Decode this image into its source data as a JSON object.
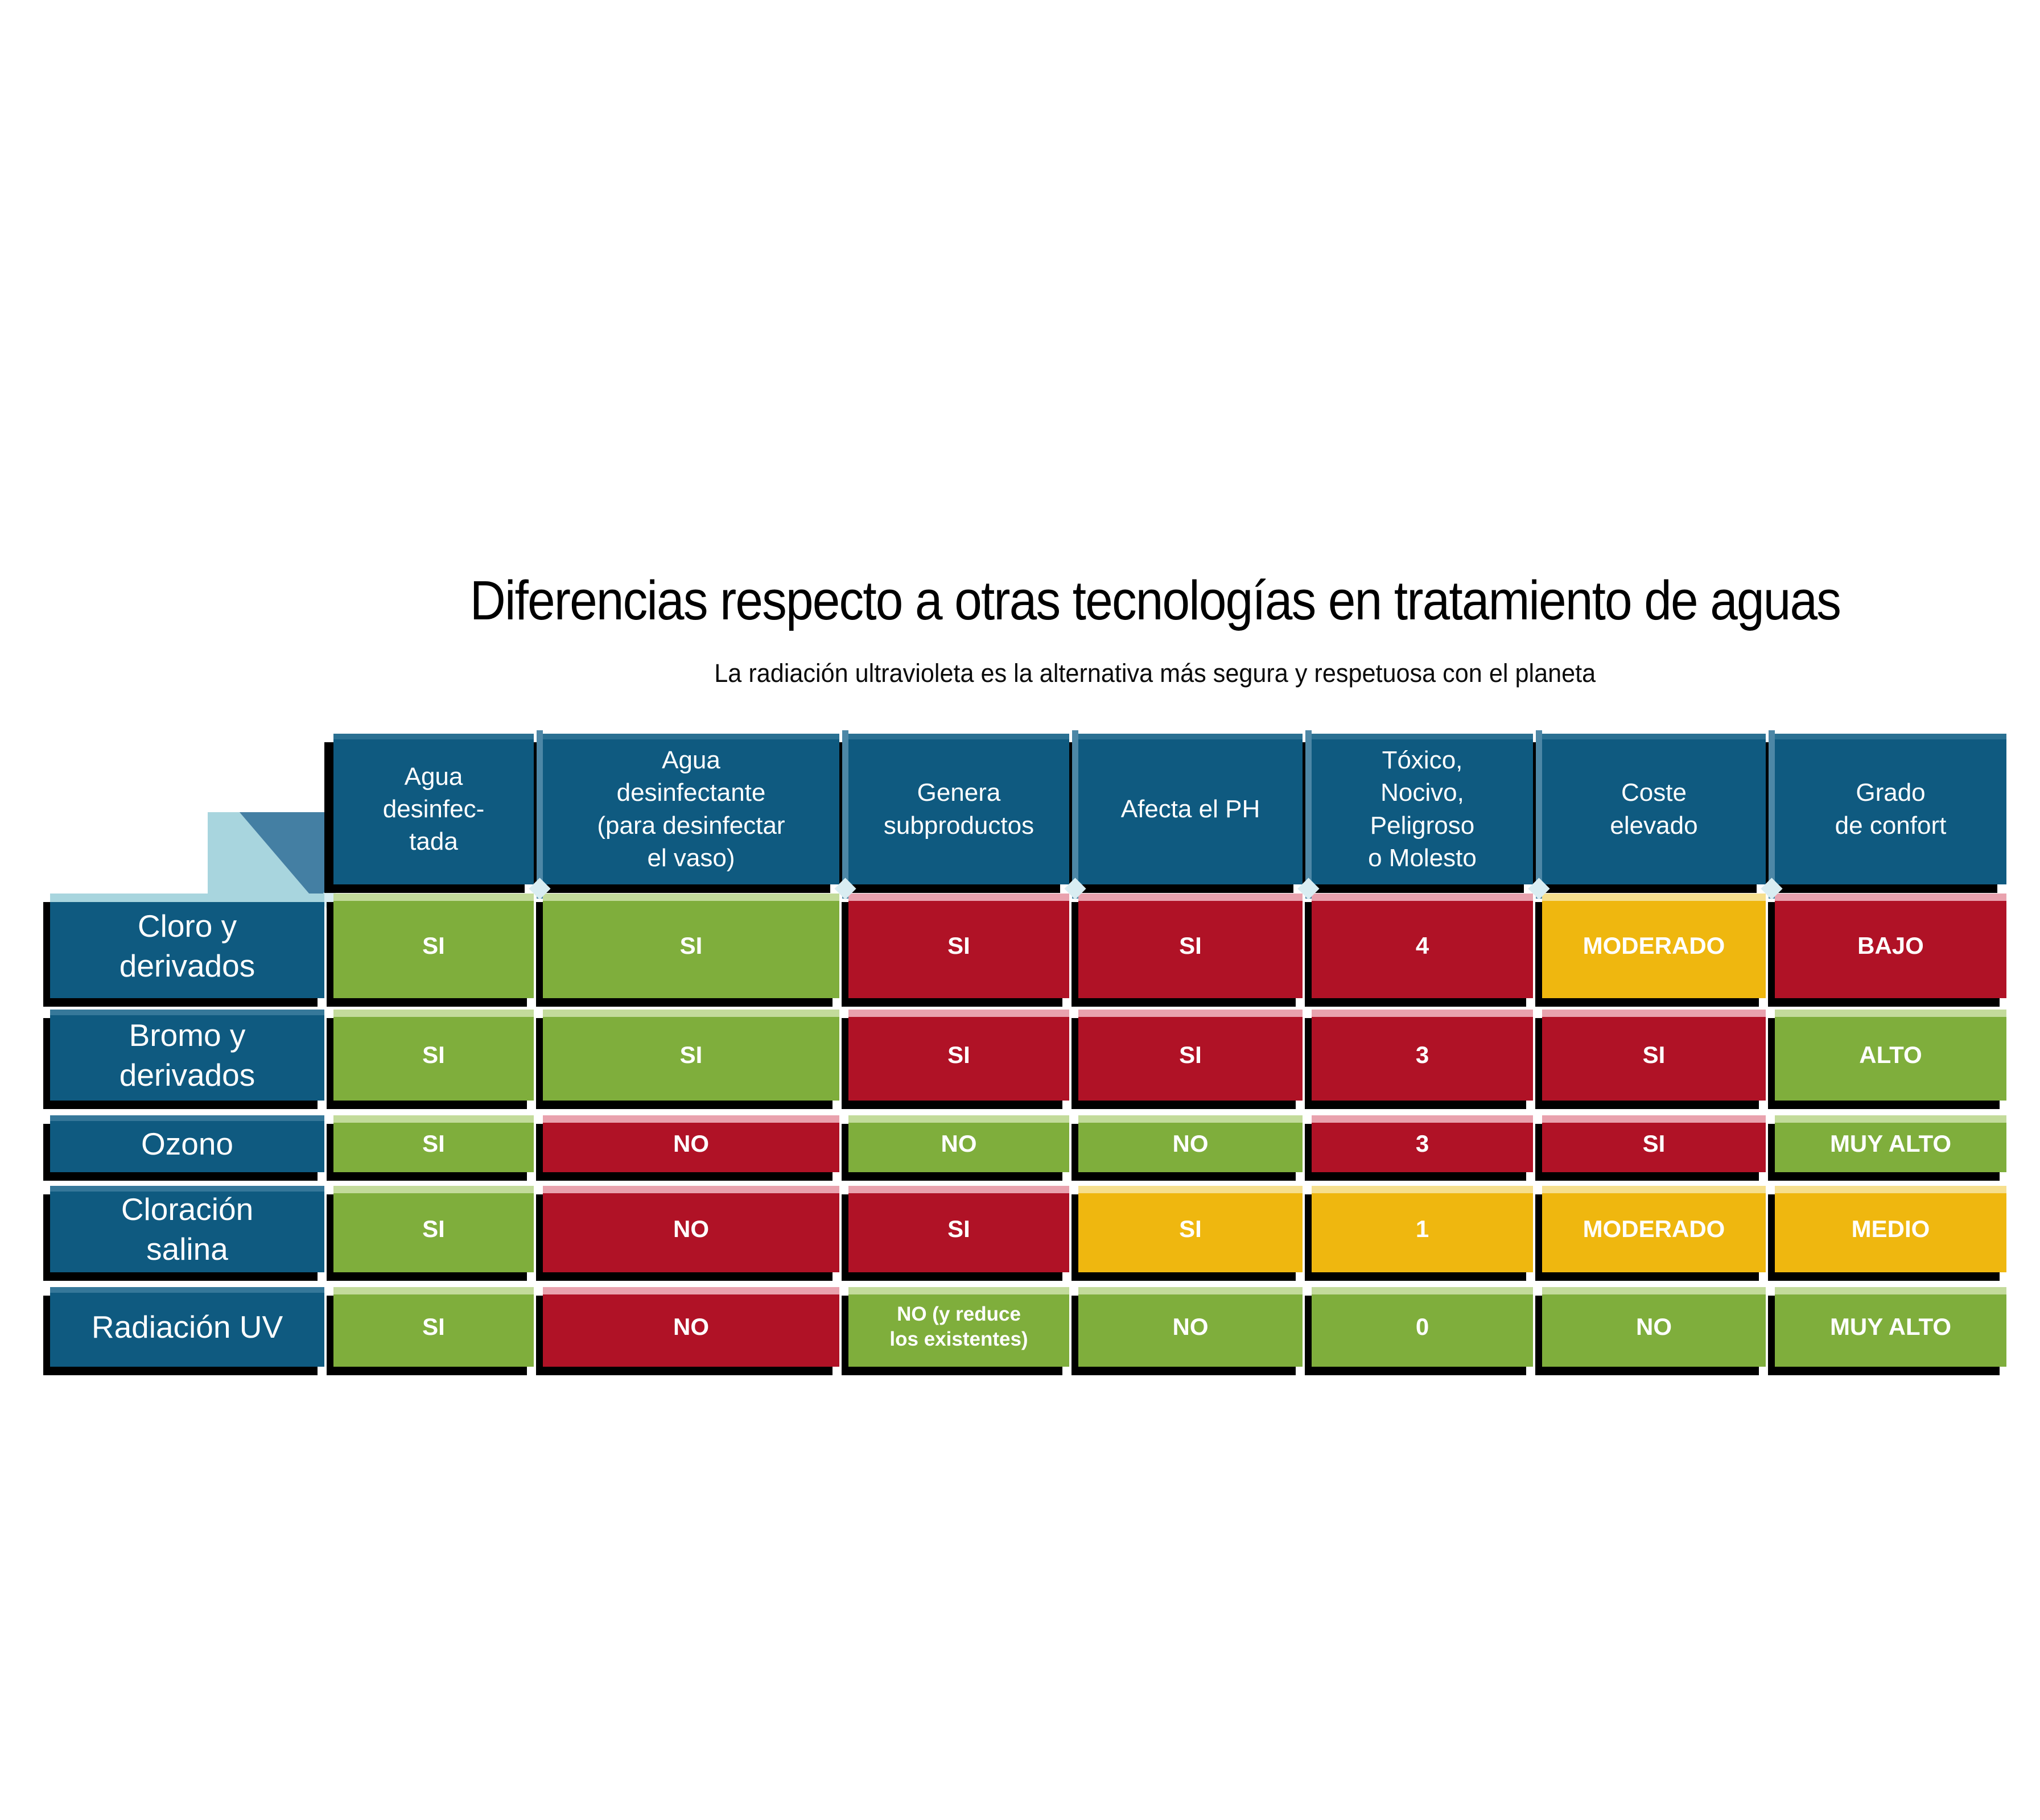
{
  "title": "Diferencias respecto a otras tecnologías en tratamiento de aguas",
  "subtitle": "La radiación ultravioleta es la alternativa más segura y respetuosa con el planeta",
  "colors": {
    "header_blue": "#0f5a80",
    "green": "#7fae3c",
    "red": "#b01226",
    "yellow": "#efb70f",
    "accent_light_cyan": "#a8d5de",
    "accent_steel_blue": "#4d87a6",
    "shadow": "#000000",
    "text_on_cells": "#ffffff",
    "title_text": "#000000"
  },
  "table": {
    "column_headers": [
      "Agua\ndesinfec-\ntada",
      "Agua\ndesinfectante\n(para desinfectar\nel vaso)",
      "Genera\nsubproductos",
      "Afecta el PH",
      "Tóxico,\nNocivo,\nPeligroso\no Molesto",
      "Coste\nelevado",
      "Grado\nde confort"
    ],
    "rows": [
      {
        "label": "Cloro y\nderivados",
        "cells": [
          {
            "text": "SI",
            "color": "green"
          },
          {
            "text": "SI",
            "color": "green"
          },
          {
            "text": "SI",
            "color": "red"
          },
          {
            "text": "SI",
            "color": "red"
          },
          {
            "text": "4",
            "color": "red"
          },
          {
            "text": "MODERADO",
            "color": "yellow"
          },
          {
            "text": "BAJO",
            "color": "red"
          }
        ]
      },
      {
        "label": "Bromo y\nderivados",
        "cells": [
          {
            "text": "SI",
            "color": "green"
          },
          {
            "text": "SI",
            "color": "green"
          },
          {
            "text": "SI",
            "color": "red"
          },
          {
            "text": "SI",
            "color": "red"
          },
          {
            "text": "3",
            "color": "red"
          },
          {
            "text": "SI",
            "color": "red"
          },
          {
            "text": "ALTO",
            "color": "green"
          }
        ]
      },
      {
        "label": "Ozono",
        "cells": [
          {
            "text": "SI",
            "color": "green"
          },
          {
            "text": "NO",
            "color": "red"
          },
          {
            "text": "NO",
            "color": "green"
          },
          {
            "text": "NO",
            "color": "green"
          },
          {
            "text": "3",
            "color": "red"
          },
          {
            "text": "SI",
            "color": "red"
          },
          {
            "text": "MUY ALTO",
            "color": "green"
          }
        ]
      },
      {
        "label": "Cloración\nsalina",
        "cells": [
          {
            "text": "SI",
            "color": "green"
          },
          {
            "text": "NO",
            "color": "red"
          },
          {
            "text": "SI",
            "color": "red"
          },
          {
            "text": "SI",
            "color": "yellow"
          },
          {
            "text": "1",
            "color": "yellow"
          },
          {
            "text": "MODERADO",
            "color": "yellow"
          },
          {
            "text": "MEDIO",
            "color": "yellow"
          }
        ]
      },
      {
        "label": "Radiación UV",
        "cells": [
          {
            "text": "SI",
            "color": "green"
          },
          {
            "text": "NO",
            "color": "red"
          },
          {
            "text": "NO (y reduce\nlos existentes)",
            "color": "green"
          },
          {
            "text": "NO",
            "color": "green"
          },
          {
            "text": "0",
            "color": "green"
          },
          {
            "text": "NO",
            "color": "green"
          },
          {
            "text": "MUY ALTO",
            "color": "green"
          }
        ]
      }
    ]
  },
  "chart_data": {
    "type": "table",
    "title": "Diferencias respecto a otras tecnologías en tratamiento de aguas",
    "subtitle": "La radiación ultravioleta es la alternativa más segura y respetuosa con el planeta",
    "columns": [
      "Agua desinfec-tada",
      "Agua desinfectante (para desinfectar el vaso)",
      "Genera subproductos",
      "Afecta el PH",
      "Tóxico, Nocivo, Peligroso o Molesto",
      "Coste elevado",
      "Grado de confort"
    ],
    "rows": [
      {
        "name": "Cloro y derivados",
        "values": [
          "SI",
          "SI",
          "SI",
          "SI",
          "4",
          "MODERADO",
          "BAJO"
        ],
        "colors": [
          "green",
          "green",
          "red",
          "red",
          "red",
          "yellow",
          "red"
        ]
      },
      {
        "name": "Bromo y derivados",
        "values": [
          "SI",
          "SI",
          "SI",
          "SI",
          "3",
          "SI",
          "ALTO"
        ],
        "colors": [
          "green",
          "green",
          "red",
          "red",
          "red",
          "red",
          "green"
        ]
      },
      {
        "name": "Ozono",
        "values": [
          "SI",
          "NO",
          "NO",
          "NO",
          "3",
          "SI",
          "MUY ALTO"
        ],
        "colors": [
          "green",
          "red",
          "green",
          "green",
          "red",
          "red",
          "green"
        ]
      },
      {
        "name": "Cloración salina",
        "values": [
          "SI",
          "NO",
          "SI",
          "SI",
          "1",
          "MODERADO",
          "MEDIO"
        ],
        "colors": [
          "green",
          "red",
          "red",
          "yellow",
          "yellow",
          "yellow",
          "yellow"
        ]
      },
      {
        "name": "Radiación UV",
        "values": [
          "SI",
          "NO",
          "NO (y reduce los existentes)",
          "NO",
          "0",
          "NO",
          "MUY ALTO"
        ],
        "colors": [
          "green",
          "red",
          "green",
          "green",
          "green",
          "green",
          "green"
        ]
      }
    ],
    "legend": "color semantics: green = favorable, red = desfavorable, yellow = moderado",
    "grid": false
  }
}
